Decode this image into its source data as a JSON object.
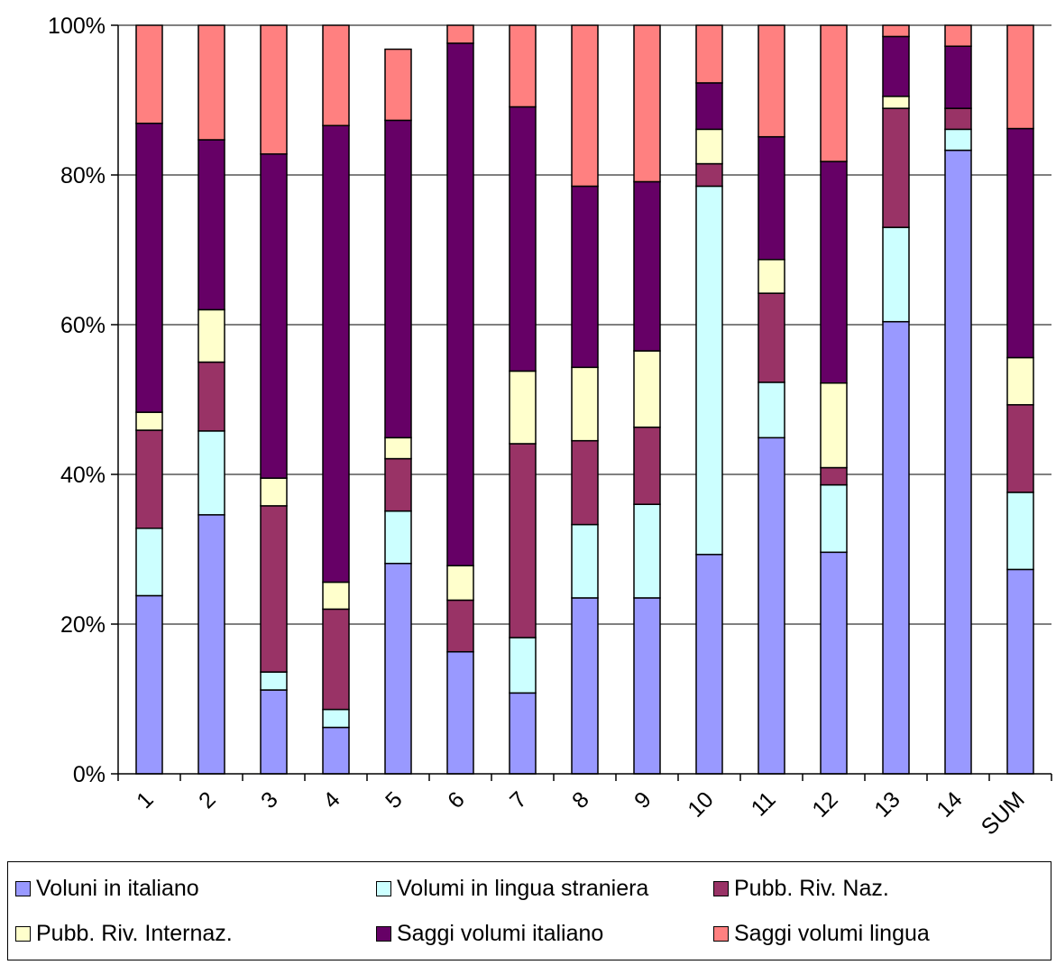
{
  "chart_data": {
    "type": "bar",
    "stacked": true,
    "percent": true,
    "categories": [
      "1",
      "2",
      "3",
      "4",
      "5",
      "6",
      "7",
      "8",
      "9",
      "10",
      "11",
      "12",
      "13",
      "14",
      "SUM"
    ],
    "yticks": [
      "0%",
      "20%",
      "40%",
      "60%",
      "80%",
      "100%"
    ],
    "ylim": [
      0,
      100
    ],
    "grid": true,
    "legend_position": "bottom",
    "series": [
      {
        "name": "Voluni in italiano",
        "color": "#9999ff",
        "values": [
          23.8,
          34.6,
          11.2,
          6.2,
          28.1,
          16.3,
          10.8,
          23.5,
          23.5,
          29.3,
          44.9,
          29.6,
          60.4,
          83.3,
          27.3
        ]
      },
      {
        "name": "Volumi in lingua straniera",
        "color": "#ccffff",
        "values": [
          9.0,
          11.2,
          2.4,
          2.4,
          7.0,
          0.0,
          7.4,
          9.8,
          12.5,
          49.2,
          7.4,
          9.0,
          12.6,
          2.8,
          10.3
        ]
      },
      {
        "name": "Pubb. Riv. Naz.",
        "color": "#993366",
        "values": [
          13.1,
          9.2,
          22.2,
          13.4,
          7.0,
          6.9,
          25.9,
          11.2,
          10.3,
          3.0,
          11.9,
          2.3,
          15.9,
          2.8,
          11.7
        ]
      },
      {
        "name": "Pubb. Riv. Internaz.",
        "color": "#ffffcc",
        "values": [
          2.4,
          7.0,
          3.7,
          3.6,
          2.8,
          4.6,
          9.7,
          9.8,
          10.2,
          4.6,
          4.5,
          11.3,
          1.6,
          0.0,
          6.3
        ]
      },
      {
        "name": "Saggi volumi italiano",
        "color": "#660066",
        "values": [
          38.6,
          22.7,
          43.3,
          61.0,
          42.4,
          69.8,
          35.3,
          24.2,
          22.6,
          6.2,
          16.4,
          29.6,
          8.0,
          8.3,
          30.6
        ]
      },
      {
        "name": "Saggi volumi lingua",
        "color": "#ff8080",
        "values": [
          13.1,
          15.3,
          17.2,
          13.4,
          9.5,
          2.4,
          10.9,
          21.5,
          20.9,
          7.7,
          14.9,
          18.2,
          1.5,
          2.8,
          13.8
        ]
      }
    ]
  }
}
